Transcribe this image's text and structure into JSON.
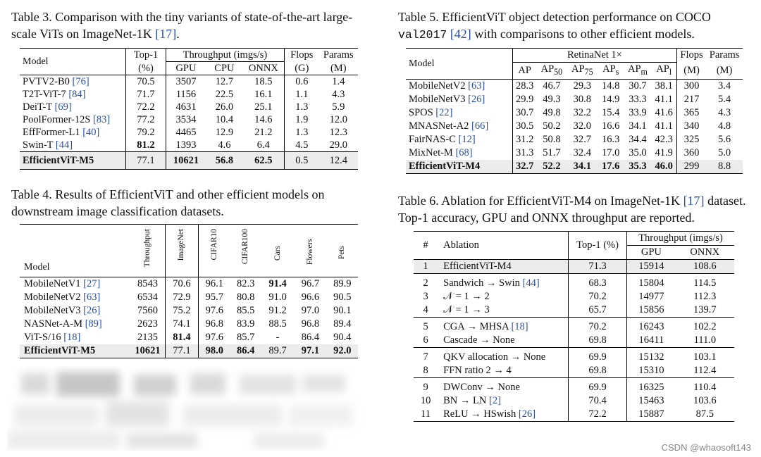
{
  "table3": {
    "caption_pre": "Table 3.  Comparison with the tiny variants of state-of-the-art large-scale ViTs on ImageNet-1K ",
    "caption_cite": "[17]",
    "caption_post": ".",
    "headers": {
      "model": "Model",
      "top1": "Top-1",
      "top1_unit": "(%)",
      "throughput": "Throughput (imgs/s)",
      "gpu": "GPU",
      "cpu": "CPU",
      "onnx": "ONNX",
      "flops": "Flops",
      "flops_unit": "(G)",
      "params": "Params",
      "params_unit": "(M)"
    },
    "rows": [
      {
        "name": "PVTV2-B0 ",
        "cite": "[76]",
        "top1": "70.5",
        "gpu": "3507",
        "cpu": "12.7",
        "onnx": "18.5",
        "flops": "0.6",
        "params": "1.4"
      },
      {
        "name": "T2T-ViT-7 ",
        "cite": "[84]",
        "top1": "71.7",
        "gpu": "1156",
        "cpu": "22.5",
        "onnx": "16.1",
        "flops": "1.1",
        "params": "4.3"
      },
      {
        "name": "DeiT-T ",
        "cite": "[69]",
        "top1": "72.2",
        "gpu": "4631",
        "cpu": "26.0",
        "onnx": "25.1",
        "flops": "1.3",
        "params": "5.9"
      },
      {
        "name": "PoolFormer-12S ",
        "cite": "[83]",
        "top1": "77.2",
        "gpu": "3534",
        "cpu": "10.4",
        "onnx": "14.6",
        "flops": "1.9",
        "params": "12.0"
      },
      {
        "name": "EffFormer-L1 ",
        "cite": "[40]",
        "top1": "79.2",
        "gpu": "4465",
        "cpu": "12.9",
        "onnx": "21.2",
        "flops": "1.3",
        "params": "12.3"
      },
      {
        "name": "Swin-T ",
        "cite": "[44]",
        "top1": "81.2",
        "gpu": "1393",
        "cpu": "4.6",
        "onnx": "6.4",
        "flops": "4.5",
        "params": "29.0"
      }
    ],
    "ours": {
      "name": "EfficientViT-M5",
      "top1": "77.1",
      "gpu": "10621",
      "cpu": "56.8",
      "onnx": "62.5",
      "flops": "0.5",
      "params": "12.4"
    }
  },
  "table4": {
    "caption": "Table 4.  Results of EfficientViT and other efficient models on downstream image classification datasets.",
    "headers": [
      "Model",
      "Throughput",
      "ImageNet",
      "CIFAR10",
      "CIFAR100",
      "Cars",
      "Flowers",
      "Pets"
    ],
    "rows": [
      {
        "name": "MobileNetV1 ",
        "cite": "[27]",
        "v": [
          "8543",
          "70.6",
          "96.1",
          "82.3",
          "91.4",
          "96.7",
          "89.9"
        ]
      },
      {
        "name": "MobileNetV2 ",
        "cite": "[63]",
        "v": [
          "6534",
          "72.9",
          "95.7",
          "80.8",
          "91.0",
          "96.6",
          "90.5"
        ]
      },
      {
        "name": "MobileNetV3 ",
        "cite": "[26]",
        "v": [
          "7560",
          "75.2",
          "97.6",
          "85.5",
          "91.2",
          "97.0",
          "90.1"
        ]
      },
      {
        "name": "NASNet-A-M ",
        "cite": "[89]",
        "v": [
          "2623",
          "74.1",
          "96.8",
          "83.9",
          "88.5",
          "96.8",
          "89.4"
        ]
      },
      {
        "name": "ViT-S/16 ",
        "cite": "[18]",
        "v": [
          "2135",
          "81.4",
          "97.6",
          "85.7",
          "-",
          "86.4",
          "90.4"
        ]
      }
    ],
    "ours": {
      "name": "EfficientViT-M5",
      "v": [
        "10621",
        "77.1",
        "98.0",
        "86.4",
        "89.7",
        "97.1",
        "92.0"
      ]
    }
  },
  "table5": {
    "caption_pre": "Table 5.  EfficientViT object detection performance on COCO ",
    "caption_mono": "val2017",
    "caption_cite": "[42]",
    "caption_post": " with comparisons to other efficient models.",
    "headers": {
      "model": "Model",
      "retina": "RetinaNet 1×",
      "ap": "AP",
      "ap50": "AP",
      "ap50_sub": "50",
      "ap75": "AP",
      "ap75_sub": "75",
      "aps": "AP",
      "aps_sub": "s",
      "apm": "AP",
      "apm_sub": "m",
      "apl": "AP",
      "apl_sub": "l",
      "flops": "Flops",
      "params": "Params",
      "flops_unit": "(M)",
      "params_unit": "(M)"
    },
    "rows": [
      {
        "name": "MobileNetV2 ",
        "cite": "[63]",
        "v": [
          "28.3",
          "46.7",
          "29.3",
          "14.8",
          "30.7",
          "38.1",
          "300",
          "3.4"
        ]
      },
      {
        "name": "MobileNetV3 ",
        "cite": "[26]",
        "v": [
          "29.9",
          "49.3",
          "30.8",
          "14.9",
          "33.3",
          "41.1",
          "217",
          "5.4"
        ]
      },
      {
        "name": "SPOS ",
        "cite": "[22]",
        "v": [
          "30.7",
          "49.8",
          "32.2",
          "15.4",
          "33.9",
          "41.6",
          "365",
          "4.3"
        ]
      },
      {
        "name": "MNASNet-A2 ",
        "cite": "[66]",
        "v": [
          "30.5",
          "50.2",
          "32.0",
          "16.6",
          "34.1",
          "41.1",
          "340",
          "4.8"
        ]
      },
      {
        "name": "FairNAS-C ",
        "cite": "[12]",
        "v": [
          "31.2",
          "50.8",
          "32.7",
          "16.3",
          "34.4",
          "42.3",
          "325",
          "5.6"
        ]
      },
      {
        "name": "MixNet-M ",
        "cite": "[68]",
        "v": [
          "31.3",
          "51.7",
          "32.4",
          "17.0",
          "35.0",
          "41.9",
          "360",
          "5.0"
        ]
      }
    ],
    "ours": {
      "name": "EfficientViT-M4",
      "v": [
        "32.7",
        "52.2",
        "34.1",
        "17.6",
        "35.3",
        "46.0",
        "299",
        "8.8"
      ]
    }
  },
  "table6": {
    "caption_pre": "Table 6.  Ablation for EfficientViT-M4 on ImageNet-1K ",
    "caption_cite": "[17]",
    "caption_post": " dataset. Top-1 accuracy, GPU and ONNX throughput are reported.",
    "headers": {
      "num": "#",
      "ablation": "Ablation",
      "top1": "Top-1 (%)",
      "throughput": "Throughput (imgs/s)",
      "gpu": "GPU",
      "onnx": "ONNX"
    },
    "rows": [
      {
        "n": "1",
        "a": "EfficientViT-M4",
        "cite": "",
        "top1": "71.3",
        "gpu": "15914",
        "onnx": "108.6"
      },
      {
        "n": "2",
        "a": "Sandwich → Swin ",
        "cite": "[44]",
        "top1": "68.3",
        "gpu": "15804",
        "onnx": "114.5"
      },
      {
        "n": "3",
        "a": "𝒩 = 1 → 2",
        "cite": "",
        "top1": "70.2",
        "gpu": "14977",
        "onnx": "112.3"
      },
      {
        "n": "4",
        "a": "𝒩 = 1 → 3",
        "cite": "",
        "top1": "65.7",
        "gpu": "15856",
        "onnx": "139.7"
      },
      {
        "n": "5",
        "a": "CGA → MHSA ",
        "cite": "[18]",
        "top1": "70.2",
        "gpu": "16243",
        "onnx": "102.2"
      },
      {
        "n": "6",
        "a": "Cascade → None",
        "cite": "",
        "top1": "69.8",
        "gpu": "16411",
        "onnx": "111.0"
      },
      {
        "n": "7",
        "a": "QKV allocation → None",
        "cite": "",
        "top1": "69.9",
        "gpu": "15132",
        "onnx": "103.1"
      },
      {
        "n": "8",
        "a": "FFN ratio 2 → 4",
        "cite": "",
        "top1": "69.8",
        "gpu": "15310",
        "onnx": "112.4"
      },
      {
        "n": "9",
        "a": "DWConv → None",
        "cite": "",
        "top1": "69.9",
        "gpu": "16325",
        "onnx": "110.4"
      },
      {
        "n": "10",
        "a": "BN → LN ",
        "cite": "[2]",
        "top1": "70.4",
        "gpu": "15463",
        "onnx": "103.6"
      },
      {
        "n": "11",
        "a": "ReLU → HSwish ",
        "cite": "[26]",
        "top1": "72.2",
        "gpu": "15887",
        "onnx": "87.5"
      }
    ]
  },
  "watermark": "CSDN @whaosoft143"
}
